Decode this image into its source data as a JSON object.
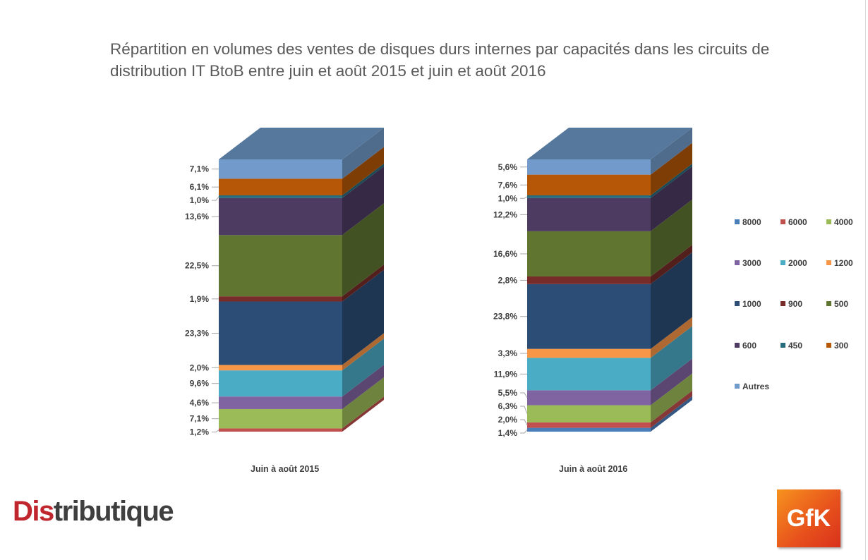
{
  "title": "Répartition en volumes des ventes de disques durs internes par capacités dans les circuits de distribution IT BtoB entre juin et août 2015 et juin et août 2016",
  "brand": {
    "dis": "Dis",
    "rest": "tributique",
    "logo": "GfK"
  },
  "colors": {
    "8000": "#4a7ebb",
    "6000": "#c0504d",
    "4000": "#9bbb59",
    "3000": "#8064a2",
    "2000": "#4bacc6",
    "1200": "#f79646",
    "1000": "#2c4d75",
    "900": "#772c2a",
    "500": "#5f7530",
    "600": "#4d3b62",
    "450": "#276a7c",
    "300": "#b65708",
    "Autres": "#729aca"
  },
  "chart_data": {
    "type": "bar",
    "stacked": true,
    "three_d": true,
    "unit": "%",
    "categories": [
      "Juin à août 2015",
      "Juin à août 2016"
    ],
    "series": [
      {
        "name": "8000",
        "values": [
          0.0,
          1.4
        ]
      },
      {
        "name": "6000",
        "values": [
          1.2,
          2.0
        ]
      },
      {
        "name": "4000",
        "values": [
          7.1,
          6.3
        ]
      },
      {
        "name": "3000",
        "values": [
          4.6,
          5.5
        ]
      },
      {
        "name": "2000",
        "values": [
          9.6,
          11.9
        ]
      },
      {
        "name": "1200",
        "values": [
          2.0,
          3.3
        ]
      },
      {
        "name": "1000",
        "values": [
          23.3,
          23.8
        ]
      },
      {
        "name": "900",
        "values": [
          1.9,
          2.8
        ]
      },
      {
        "name": "500",
        "values": [
          22.5,
          16.6
        ]
      },
      {
        "name": "600",
        "values": [
          13.6,
          12.2
        ]
      },
      {
        "name": "450",
        "values": [
          1.0,
          1.0
        ]
      },
      {
        "name": "300",
        "values": [
          6.1,
          7.6
        ]
      },
      {
        "name": "Autres",
        "values": [
          7.1,
          5.6
        ]
      }
    ],
    "data_labels": [
      [
        "",
        "1,2%",
        "7,1%",
        "4,6%",
        "9,6%",
        "2,0%",
        "23,3%",
        "1,9%",
        "22,5%",
        "13,6%",
        "1,0%",
        "6,1%",
        "7,1%"
      ],
      [
        "1,4%",
        "2,0%",
        "6,3%",
        "5,5%",
        "11,9%",
        "3,3%",
        "23,8%",
        "2,8%",
        "16,6%",
        "12,2%",
        "1,0%",
        "7,6%",
        "5,6%"
      ]
    ],
    "legend": {
      "position": "right",
      "rows": [
        [
          "8000",
          "6000",
          "4000"
        ],
        [
          "3000",
          "2000",
          "1200"
        ],
        [
          "1000",
          "900",
          "500"
        ],
        [
          "600",
          "450",
          "300"
        ],
        [
          "Autres"
        ]
      ]
    },
    "gridlines": false
  }
}
